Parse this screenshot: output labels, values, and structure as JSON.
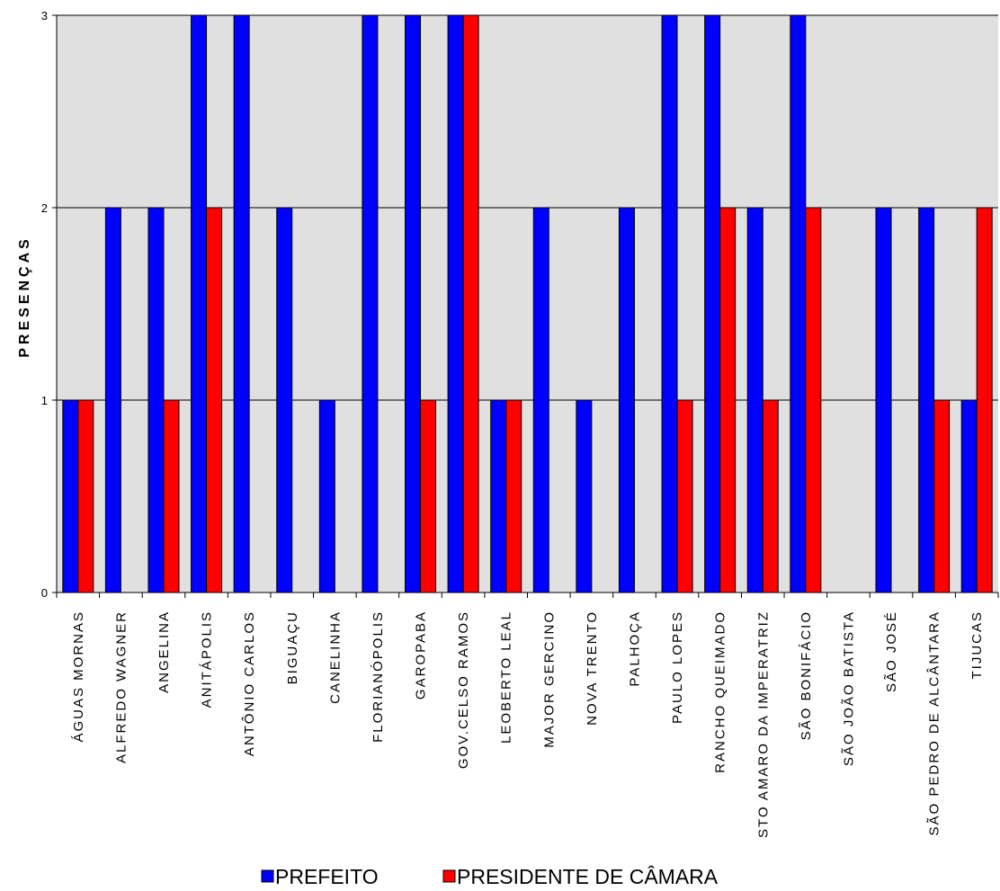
{
  "chart_data": {
    "type": "bar",
    "ylabel": "PRESENÇAS",
    "xlabel": "",
    "ylim": [
      0,
      3
    ],
    "yticks": [
      "0",
      "1",
      "2",
      "3"
    ],
    "grid": true,
    "legend_position": "bottom",
    "categories": [
      "ÁGUAS MORNAS",
      "ALFREDO WAGNER",
      "ANGELINA",
      "ANITÁPOLIS",
      "ANTÔNIO CARLOS",
      "BIGUAÇU",
      "CANELINHA",
      "FLORIANÓPOLIS",
      "GAROPABA",
      "GOV.CELSO RAMOS",
      "LEOBERTO LEAL",
      "MAJOR GERCINO",
      "NOVA TRENTO",
      "PALHOÇA",
      "PAULO LOPES",
      "RANCHO QUEIMADO",
      "STO AMARO DA IMPERATRIZ",
      "SÃO BONIFÁCIO",
      "SÃO JOÃO BATISTA",
      "SÃO JOSÉ",
      "SÃO PEDRO DE ALCÂNTARA",
      "TIJUCAS"
    ],
    "series": [
      {
        "name": "PREFEITO",
        "color": "#0000ff",
        "values": [
          1,
          2,
          2,
          3,
          3,
          2,
          1,
          3,
          3,
          3,
          1,
          2,
          1,
          2,
          3,
          3,
          2,
          3,
          0,
          2,
          2,
          1
        ]
      },
      {
        "name": "PRESIDENTE DE CÂMARA",
        "color": "#ff0000",
        "values": [
          1,
          0,
          1,
          2,
          0,
          0,
          0,
          0,
          1,
          3,
          1,
          0,
          0,
          0,
          1,
          2,
          1,
          2,
          0,
          0,
          1,
          2
        ]
      }
    ],
    "plot_background": "#e0e0e0"
  }
}
